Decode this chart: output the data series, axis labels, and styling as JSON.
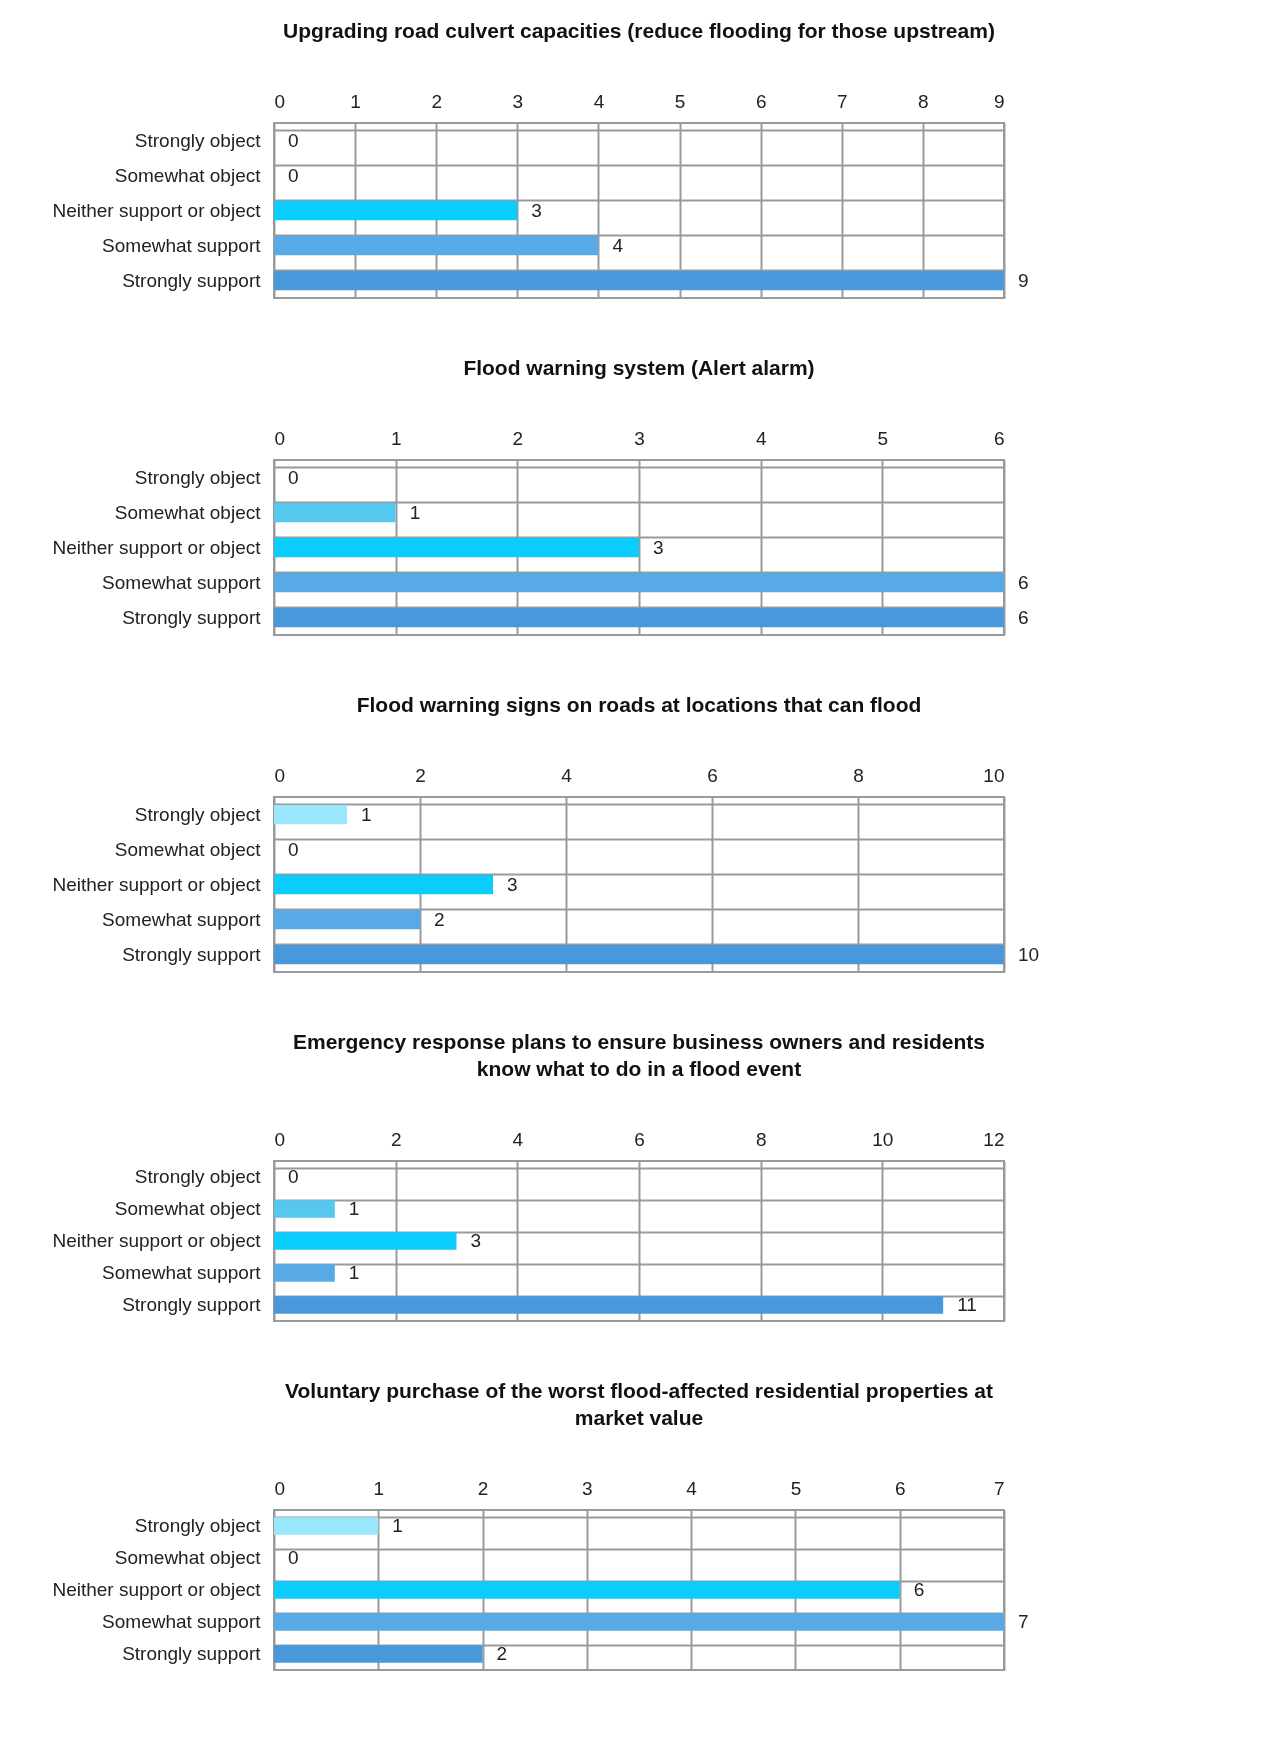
{
  "chart_data": [
    {
      "type": "bar",
      "orientation": "horizontal",
      "title": "Upgrading road culvert capacities (reduce flooding for those upstream)",
      "categories": [
        "Strongly object",
        "Somewhat object",
        "Neither support or object",
        "Somewhat support",
        "Strongly support"
      ],
      "values": [
        0,
        0,
        3,
        4,
        9
      ],
      "colors": [
        "#9ae6fc",
        "#55c8ee",
        "#0acdfd",
        "#57aae6",
        "#4a98dc"
      ],
      "xlim": [
        0,
        9
      ],
      "xticks": [
        0,
        1,
        2,
        3,
        4,
        5,
        6,
        7,
        8,
        9
      ],
      "grid": true,
      "data_labels": true
    },
    {
      "type": "bar",
      "orientation": "horizontal",
      "title": "Flood warning system (Alert alarm)",
      "categories": [
        "Strongly object",
        "Somewhat object",
        "Neither support or object",
        "Somewhat support",
        "Strongly support"
      ],
      "values": [
        0,
        1,
        3,
        6,
        6
      ],
      "colors": [
        "#9ae6fc",
        "#55c8ee",
        "#0acdfd",
        "#57aae6",
        "#4a98dc"
      ],
      "xlim": [
        0,
        6
      ],
      "xticks": [
        0,
        1,
        2,
        3,
        4,
        5,
        6
      ],
      "grid": true,
      "data_labels": true
    },
    {
      "type": "bar",
      "orientation": "horizontal",
      "title": "Flood warning signs on roads at locations that can flood",
      "categories": [
        "Strongly object",
        "Somewhat object",
        "Neither support or object",
        "Somewhat support",
        "Strongly support"
      ],
      "values": [
        1,
        0,
        3,
        2,
        10
      ],
      "colors": [
        "#9ae6fc",
        "#55c8ee",
        "#0acdfd",
        "#57aae6",
        "#4a98dc"
      ],
      "xlim": [
        0,
        10
      ],
      "xticks": [
        0,
        2,
        4,
        6,
        8,
        10
      ],
      "grid": true,
      "data_labels": true
    },
    {
      "type": "bar",
      "orientation": "horizontal",
      "title": "Emergency response plans to ensure business owners and residents\nknow what to do in a flood event",
      "categories": [
        "Strongly object",
        "Somewhat object",
        "Neither support or object",
        "Somewhat support",
        "Strongly support"
      ],
      "values": [
        0,
        1,
        3,
        1,
        11
      ],
      "colors": [
        "#9ae6fc",
        "#55c8ee",
        "#0acdfd",
        "#57aae6",
        "#4a98dc"
      ],
      "xlim": [
        0,
        12
      ],
      "xticks": [
        0,
        2,
        4,
        6,
        8,
        10,
        12
      ],
      "grid": true,
      "data_labels": true
    },
    {
      "type": "bar",
      "orientation": "horizontal",
      "title": "Voluntary purchase of the worst flood-affected residential properties at\nmarket value",
      "categories": [
        "Strongly object",
        "Somewhat object",
        "Neither support or object",
        "Somewhat support",
        "Strongly support"
      ],
      "values": [
        1,
        0,
        6,
        7,
        2
      ],
      "colors": [
        "#9ae6fc",
        "#55c8ee",
        "#0acdfd",
        "#57aae6",
        "#4a98dc"
      ],
      "xlim": [
        0,
        7
      ],
      "xticks": [
        0,
        1,
        2,
        3,
        4,
        5,
        6,
        7
      ],
      "grid": true,
      "data_labels": true
    }
  ]
}
